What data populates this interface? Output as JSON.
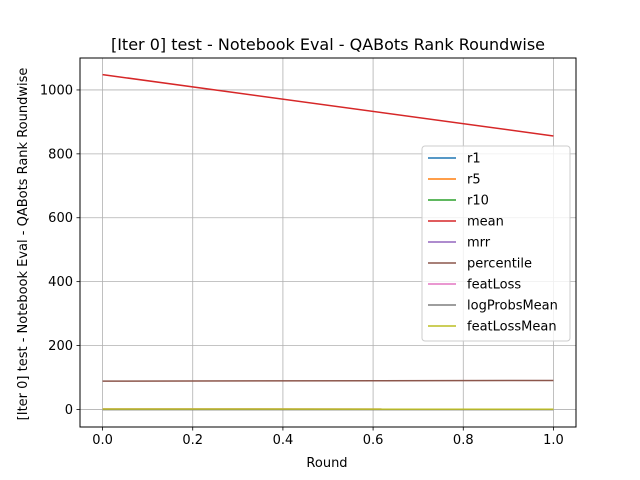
{
  "chart_data": {
    "type": "line",
    "title": "[Iter 0] test - Notebook Eval - QABots Rank Roundwise",
    "xlabel": "Round",
    "ylabel": "[Iter 0] test - Notebook Eval - QABots Rank Roundwise",
    "x": [
      0.0,
      1.0
    ],
    "xlim": [
      -0.05,
      1.05
    ],
    "ylim": [
      -55,
      1100
    ],
    "xticks": [
      0.0,
      0.2,
      0.4,
      0.6,
      0.8,
      1.0
    ],
    "xtick_labels": [
      "0.0",
      "0.2",
      "0.4",
      "0.6",
      "0.8",
      "1.0"
    ],
    "yticks": [
      0,
      200,
      400,
      600,
      800,
      1000
    ],
    "ytick_labels": [
      "0",
      "200",
      "400",
      "600",
      "800",
      "1000"
    ],
    "grid": true,
    "legend_position": "center-right",
    "series": [
      {
        "name": "r1",
        "color": "#1f77b4",
        "values": [
          0.0,
          0.02
        ]
      },
      {
        "name": "r5",
        "color": "#ff7f0e",
        "values": [
          0.02,
          0.04
        ]
      },
      {
        "name": "r10",
        "color": "#2ca02c",
        "values": [
          0.04,
          0.06
        ]
      },
      {
        "name": "mean",
        "color": "#d62728",
        "values": [
          1048,
          856
        ]
      },
      {
        "name": "mrr",
        "color": "#9467bd",
        "values": [
          0.02,
          0.03
        ]
      },
      {
        "name": "percentile",
        "color": "#8c564b",
        "values": [
          88.5,
          90.7
        ]
      },
      {
        "name": "featLoss",
        "color": "#e377c2",
        "values": [
          1.2,
          1.1
        ]
      },
      {
        "name": "logProbsMean",
        "color": "#7f7f7f",
        "values": [
          0,
          0
        ]
      },
      {
        "name": "featLossMean",
        "color": "#bcbd22",
        "values": [
          1.2,
          1.1
        ]
      }
    ]
  }
}
